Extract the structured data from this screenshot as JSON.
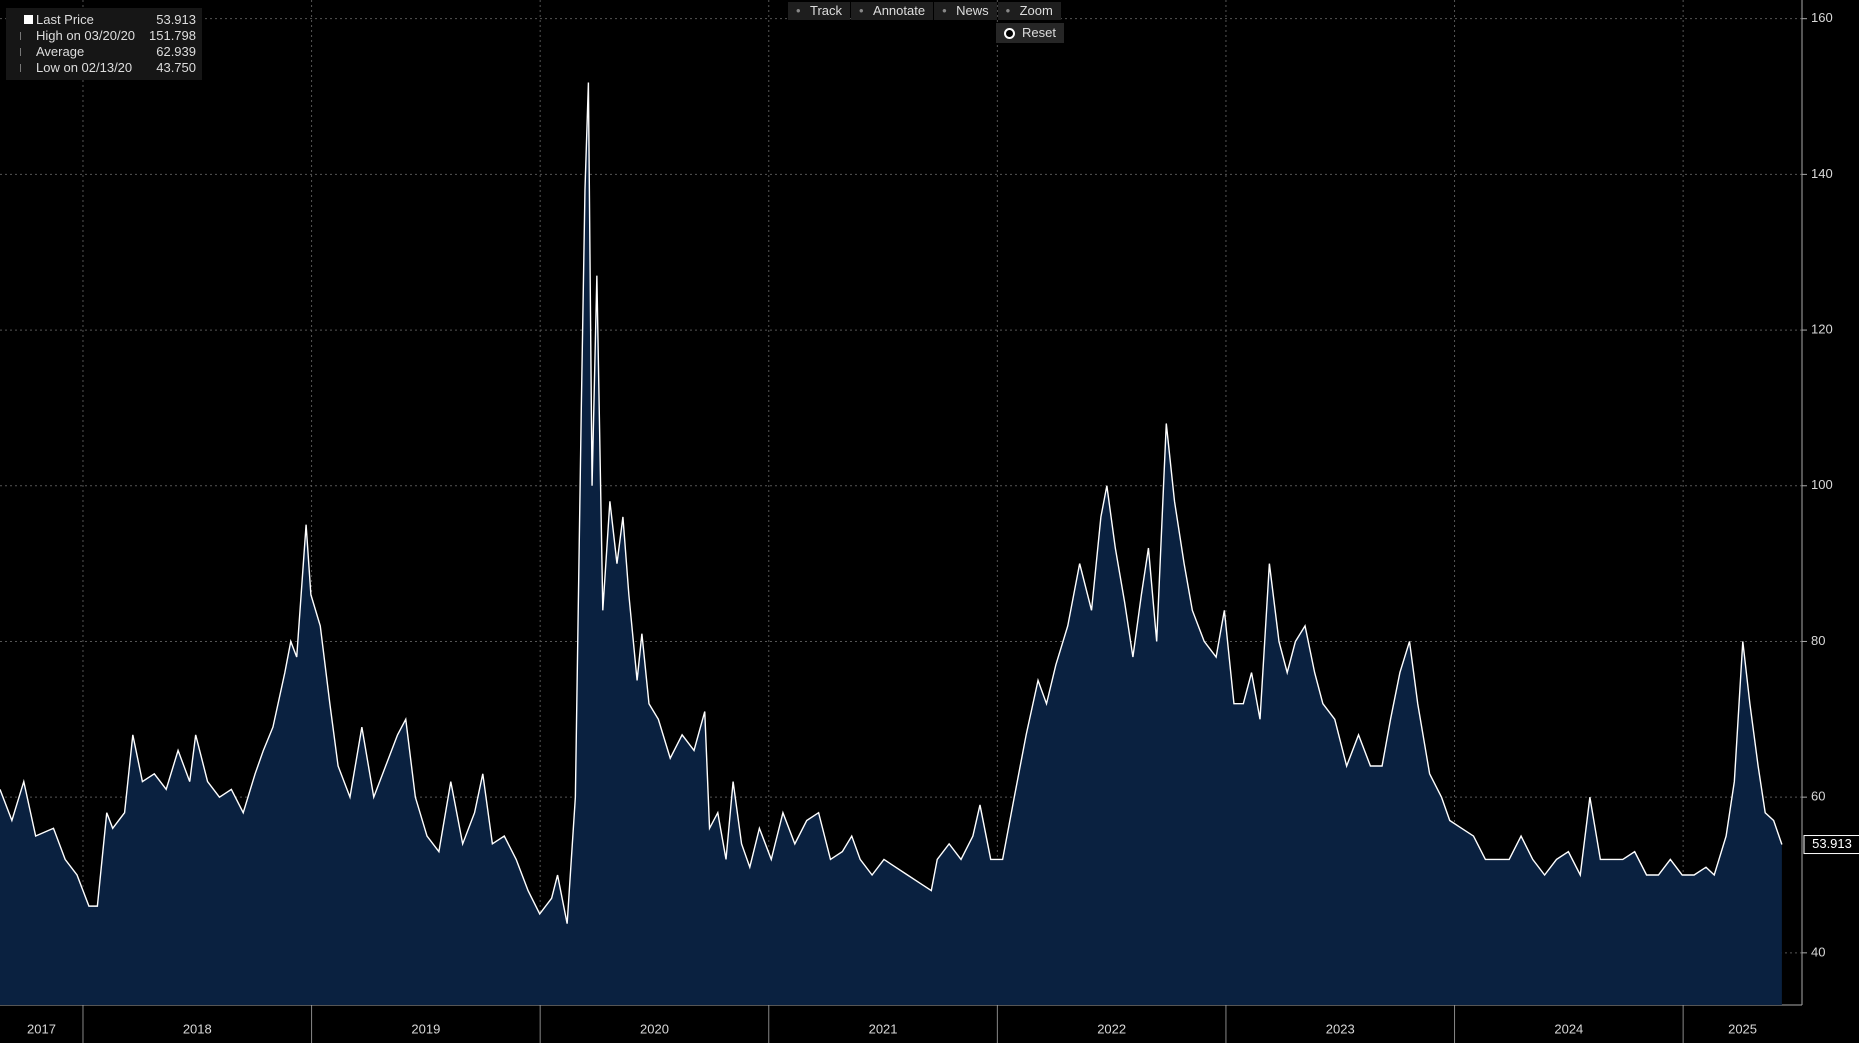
{
  "chart_data": {
    "type": "area",
    "legend": [
      {
        "label": "Last Price",
        "value": 53.913
      },
      {
        "label": "High on 03/20/20",
        "value": 151.798
      },
      {
        "label": "Average",
        "value": 62.939
      },
      {
        "label": "Low on 02/13/20",
        "value": {
          "value": 43.75,
          "label": "43.750"
        }
      }
    ],
    "toolbar": [
      "Track",
      "Annotate",
      "News",
      "Zoom"
    ],
    "reset": "Reset",
    "x": [
      2017.637,
      2017.689,
      2017.741,
      2017.793,
      2017.871,
      2017.922,
      2017.974,
      2018.026,
      2018.063,
      2018.104,
      2018.13,
      2018.182,
      2018.218,
      2018.26,
      2018.312,
      2018.364,
      2018.416,
      2018.467,
      2018.493,
      2018.545,
      2018.597,
      2018.649,
      2018.701,
      2018.753,
      2018.789,
      2018.831,
      2018.883,
      2018.909,
      2018.935,
      2018.976,
      2018.997,
      2019.038,
      2019.08,
      2019.116,
      2019.168,
      2019.22,
      2019.272,
      2019.324,
      2019.376,
      2019.412,
      2019.454,
      2019.505,
      2019.557,
      2019.609,
      2019.661,
      2019.713,
      2019.749,
      2019.791,
      2019.843,
      2019.895,
      2019.947,
      2019.998,
      2020.05,
      2020.076,
      2020.118,
      2020.154,
      2020.18,
      2020.196,
      2020.211,
      2020.227,
      2020.248,
      2020.274,
      2020.305,
      2020.336,
      2020.362,
      2020.388,
      2020.424,
      2020.445,
      2020.476,
      2020.517,
      2020.569,
      2020.621,
      2020.673,
      2020.72,
      2020.741,
      2020.777,
      2020.813,
      2020.844,
      2020.881,
      2020.917,
      2020.959,
      2021.011,
      2021.062,
      2021.114,
      2021.166,
      2021.218,
      2021.27,
      2021.322,
      2021.363,
      2021.4,
      2021.452,
      2021.504,
      2021.555,
      2021.607,
      2021.659,
      2021.711,
      2021.737,
      2021.789,
      2021.841,
      2021.893,
      2021.924,
      2021.971,
      2022.023,
      2022.074,
      2022.126,
      2022.178,
      2022.215,
      2022.256,
      2022.308,
      2022.36,
      2022.412,
      2022.453,
      2022.479,
      2022.516,
      2022.557,
      2022.593,
      2022.63,
      2022.661,
      2022.697,
      2022.739,
      2022.775,
      2022.817,
      2022.853,
      2022.905,
      2022.957,
      2022.993,
      2023.035,
      2023.076,
      2023.112,
      2023.149,
      2023.19,
      2023.232,
      2023.268,
      2023.304,
      2023.346,
      2023.388,
      2023.424,
      2023.476,
      2023.528,
      2023.58,
      2023.632,
      2023.683,
      2023.72,
      2023.761,
      2023.803,
      2023.839,
      2023.891,
      2023.943,
      2023.979,
      2024.031,
      2024.083,
      2024.135,
      2024.187,
      2024.239,
      2024.291,
      2024.342,
      2024.394,
      2024.446,
      2024.498,
      2024.55,
      2024.592,
      2024.638,
      2024.685,
      2024.736,
      2024.788,
      2024.84,
      2024.892,
      2024.944,
      2024.996,
      2025.048,
      2025.1,
      2025.136,
      2025.188,
      2025.224,
      2025.261,
      2025.292,
      2025.328,
      2025.359,
      2025.396,
      2025.432
    ],
    "series": [
      {
        "name": "Last Price",
        "color": "#ffffff",
        "fill": "#0a2140",
        "values": [
          61,
          57,
          62,
          55,
          56,
          52,
          50,
          46,
          46,
          58,
          56,
          58,
          68,
          62,
          63,
          61,
          66,
          62,
          68,
          62,
          60,
          61,
          58,
          63,
          66,
          69,
          76,
          80,
          78,
          95,
          86,
          82,
          72,
          64,
          60,
          69,
          60,
          64,
          68,
          70,
          60,
          55,
          53,
          62,
          54,
          58,
          63,
          54,
          55,
          52,
          48,
          45,
          47,
          50,
          43.75,
          60,
          110,
          138,
          151.798,
          100,
          127,
          84,
          98,
          90,
          96,
          86,
          75,
          81,
          72,
          70,
          65,
          68,
          66,
          71,
          56,
          58,
          52,
          62,
          54,
          51,
          56,
          52,
          58,
          54,
          57,
          58,
          52,
          53,
          55,
          52,
          50,
          52,
          51,
          50,
          49,
          48,
          52,
          54,
          52,
          55,
          59,
          52,
          52,
          60,
          68,
          75,
          72,
          77,
          82,
          90,
          84,
          96,
          100,
          92,
          85,
          78,
          86,
          92,
          80,
          108,
          98,
          90,
          84,
          80,
          78,
          84,
          72,
          72,
          76,
          70,
          90,
          80,
          76,
          80,
          82,
          76,
          72,
          70,
          64,
          68,
          64,
          64,
          70,
          76,
          80,
          72,
          63,
          60,
          57,
          56,
          55,
          52,
          52,
          52,
          55,
          52,
          50,
          52,
          53,
          50,
          60,
          52,
          52,
          52,
          53,
          50,
          50,
          52,
          50,
          50,
          51,
          50,
          55,
          62,
          80,
          72,
          64,
          58,
          57,
          53.913
        ]
      }
    ],
    "xlim": [
      2017.637,
      2025.52
    ],
    "xticks": [
      2017,
      2018,
      2019,
      2020,
      2021,
      2022,
      2023,
      2024,
      2025
    ],
    "ylim": [
      33.3,
      162.4
    ],
    "yticks": [
      40,
      60,
      80,
      100,
      120,
      140,
      160
    ],
    "grid": true
  }
}
